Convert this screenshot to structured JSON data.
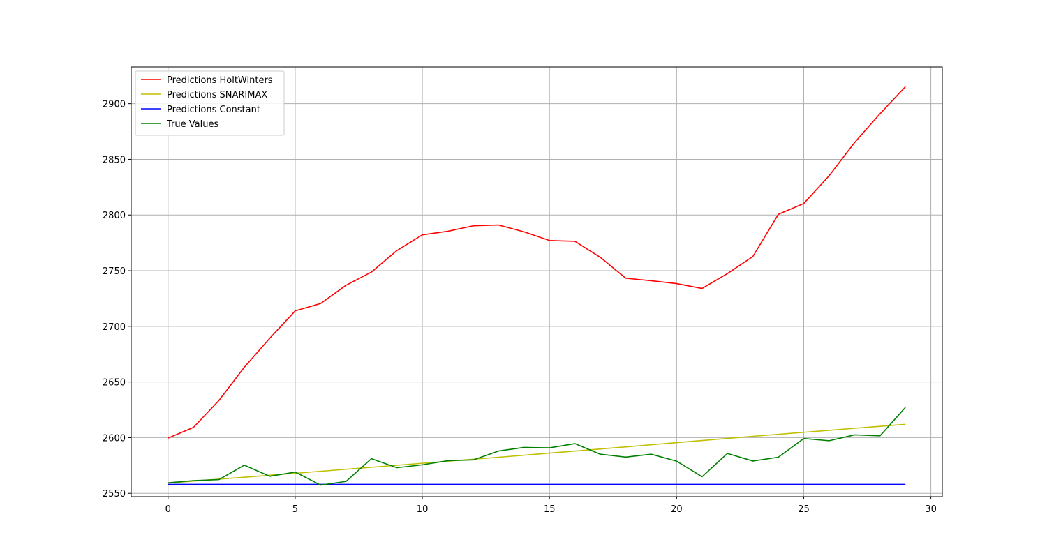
{
  "chart_data": {
    "type": "line",
    "title": "",
    "xlabel": "",
    "ylabel": "",
    "x": [
      0,
      1,
      2,
      3,
      4,
      5,
      6,
      7,
      8,
      9,
      10,
      11,
      12,
      13,
      14,
      15,
      16,
      17,
      18,
      19,
      20,
      21,
      22,
      23,
      24,
      25,
      26,
      27,
      28,
      29
    ],
    "xlim": [
      -1.45,
      30.45
    ],
    "ylim": [
      2547,
      2933
    ],
    "xticks": [
      0,
      5,
      10,
      15,
      20,
      25,
      30
    ],
    "xtick_labels": [
      "0",
      "5",
      "10",
      "15",
      "20",
      "25",
      "30"
    ],
    "yticks": [
      2550,
      2600,
      2650,
      2700,
      2750,
      2800,
      2850,
      2900
    ],
    "ytick_labels": [
      "2550",
      "2600",
      "2650",
      "2700",
      "2750",
      "2800",
      "2850",
      "2900"
    ],
    "grid": true,
    "legend_position": "upper left",
    "series": [
      {
        "name": "Predictions HoltWinters",
        "color": "#ff0000",
        "values": [
          2599.6,
          2609.2,
          2633.4,
          2663.3,
          2689.3,
          2713.9,
          2720.5,
          2736.9,
          2748.8,
          2768.1,
          2782.2,
          2785.4,
          2790.3,
          2791.0,
          2784.9,
          2777.1,
          2776.4,
          2762.0,
          2743.2,
          2741.0,
          2738.4,
          2734.0,
          2747.4,
          2762.7,
          2800.6,
          2810.3,
          2835.3,
          2865.1,
          2891.0,
          2915.3
        ]
      },
      {
        "name": "Predictions SNARIMAX",
        "color": "#bfbf00",
        "values": [
          2559.2,
          2561.0,
          2562.7,
          2564.4,
          2566.2,
          2568.0,
          2569.8,
          2571.6,
          2573.4,
          2575.2,
          2577.0,
          2578.8,
          2580.6,
          2582.4,
          2584.2,
          2586.1,
          2587.9,
          2589.8,
          2591.7,
          2593.6,
          2595.5,
          2597.4,
          2599.3,
          2601.2,
          2603.0,
          2604.8,
          2606.6,
          2608.4,
          2610.2,
          2612.0
        ]
      },
      {
        "name": "Predictions Constant",
        "color": "#0000ff",
        "values": [
          2558.0,
          2558.0,
          2558.0,
          2558.0,
          2558.0,
          2558.0,
          2558.0,
          2558.0,
          2558.0,
          2558.0,
          2558.0,
          2558.0,
          2558.0,
          2558.0,
          2558.0,
          2558.0,
          2558.0,
          2558.0,
          2558.0,
          2558.0,
          2558.0,
          2558.0,
          2558.0,
          2558.0,
          2558.0,
          2558.0,
          2558.0,
          2558.0,
          2558.0,
          2558.0
        ]
      },
      {
        "name": "True Values",
        "color": "#008000",
        "values": [
          2559.4,
          2561.4,
          2562.3,
          2575.3,
          2565.3,
          2569.1,
          2557.4,
          2560.7,
          2581.1,
          2573.0,
          2575.6,
          2579.3,
          2580.0,
          2588.0,
          2591.2,
          2590.8,
          2594.6,
          2585.1,
          2582.5,
          2585.1,
          2578.9,
          2564.9,
          2585.8,
          2579.0,
          2582.4,
          2599.2,
          2597.2,
          2602.5,
          2601.6,
          2627.2
        ]
      }
    ]
  }
}
